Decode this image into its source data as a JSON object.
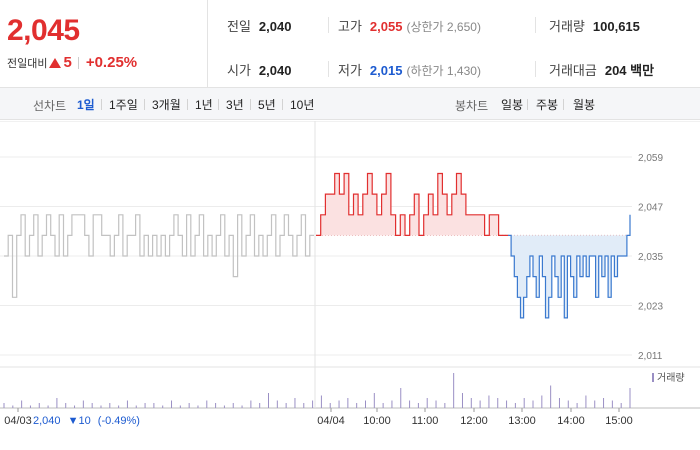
{
  "summary": {
    "current_price": "2,045",
    "change_label": "전일대비",
    "change_value": "5",
    "change_percent": "+0.25%",
    "stats": {
      "prev_close_label": "전일",
      "prev_close": "2,040",
      "open_label": "시가",
      "open": "2,040",
      "high_label": "고가",
      "high": "2,055",
      "upper_limit": "(상한가 2,650)",
      "low_label": "저가",
      "low": "2,015",
      "lower_limit": "(하한가 1,430)",
      "volume_label": "거래량",
      "volume": "100,615",
      "amount_label": "거래대금",
      "amount": "204 백만"
    }
  },
  "period_bar": {
    "line_chart_label": "선차트",
    "line_tabs": [
      "1일",
      "1주일",
      "3개월",
      "1년",
      "3년",
      "5년",
      "10년"
    ],
    "active_line_tab": "1일",
    "candle_chart_label": "봉차트",
    "candle_tabs": [
      "일봉",
      "주봉",
      "월봉"
    ]
  },
  "chart_data": {
    "type": "line",
    "y_ticks": [
      "2,059",
      "2,047",
      "2,035",
      "2,023",
      "2,011"
    ],
    "ylim": [
      2011,
      2059
    ],
    "reference_price": 2040,
    "x_tick_labels": [
      "04/03",
      "04/04",
      "10:00",
      "11:00",
      "12:00",
      "13:00",
      "14:00",
      "15:00"
    ],
    "prev_day_note": {
      "date": "04/03",
      "price": "2,040",
      "change": "▼10",
      "change_pct": "(-0.49%)"
    },
    "legend_volume": "거래량",
    "colors": {
      "prev_day_line": "#c2c2c2",
      "up_line": "#e12f2f",
      "up_fill": "#fbe1e1",
      "down_line": "#3a79cf",
      "down_fill": "#e1ecf8",
      "volume_bar": "#9a8fc4"
    },
    "series": [
      {
        "segment": "prev_day",
        "values": [
          2035,
          2040,
          2025,
          2040,
          2045,
          2035,
          2040,
          2045,
          2035,
          2040,
          2045,
          2040,
          2035,
          2045,
          2035,
          2040,
          2045,
          2045,
          2045,
          2040,
          2035,
          2045,
          2045,
          2040,
          2040,
          2035,
          2040,
          2045,
          2035,
          2040,
          2040,
          2045,
          2035,
          2040,
          2035,
          2040,
          2035,
          2040,
          2035,
          2040,
          2045,
          2040,
          2035,
          2045,
          2035,
          2040,
          2045,
          2035,
          2040,
          2035,
          2040,
          2045,
          2035,
          2040,
          2030,
          2045,
          2035,
          2040,
          2045,
          2035,
          2040,
          2035,
          2040,
          2045,
          2035,
          2040,
          2045,
          2040,
          2035,
          2040,
          2045,
          2035,
          2040,
          2040
        ]
      },
      {
        "segment": "today_up",
        "values": [
          2040,
          2045,
          2050,
          2050,
          2055,
          2050,
          2055,
          2045,
          2050,
          2045,
          2050,
          2055,
          2050,
          2045,
          2050,
          2055,
          2045,
          2040,
          2045,
          2040,
          2045,
          2050,
          2040,
          2045,
          2050,
          2045,
          2055,
          2050,
          2045,
          2050,
          2055,
          2050,
          2045,
          2045,
          2045,
          2045,
          2040,
          2045,
          2045,
          2040,
          2040,
          2040
        ]
      },
      {
        "segment": "today_down",
        "values": [
          2040,
          2035,
          2030,
          2025,
          2020,
          2025,
          2030,
          2035,
          2030,
          2025,
          2035,
          2030,
          2020,
          2025,
          2035,
          2030,
          2025,
          2035,
          2020,
          2035,
          2030,
          2025,
          2035,
          2030,
          2035,
          2030,
          2035,
          2035,
          2025,
          2035,
          2030,
          2035,
          2025,
          2035,
          2030,
          2035,
          2035,
          2035,
          2040,
          2045
        ]
      }
    ],
    "volume_values": [
      2,
      1,
      3,
      1,
      2,
      1,
      4,
      2,
      1,
      3,
      2,
      1,
      2,
      1,
      3,
      1,
      2,
      2,
      1,
      3,
      1,
      2,
      1,
      3,
      2,
      1,
      2,
      1,
      3,
      2,
      6,
      3,
      2,
      4,
      2,
      3,
      5,
      2,
      3,
      4,
      2,
      3,
      6,
      2,
      3,
      8,
      3,
      2,
      4,
      3,
      2,
      14,
      6,
      4,
      3,
      5,
      4,
      3,
      2,
      4,
      3,
      5,
      9,
      4,
      3,
      2,
      5,
      3,
      4,
      3,
      2,
      8
    ]
  }
}
